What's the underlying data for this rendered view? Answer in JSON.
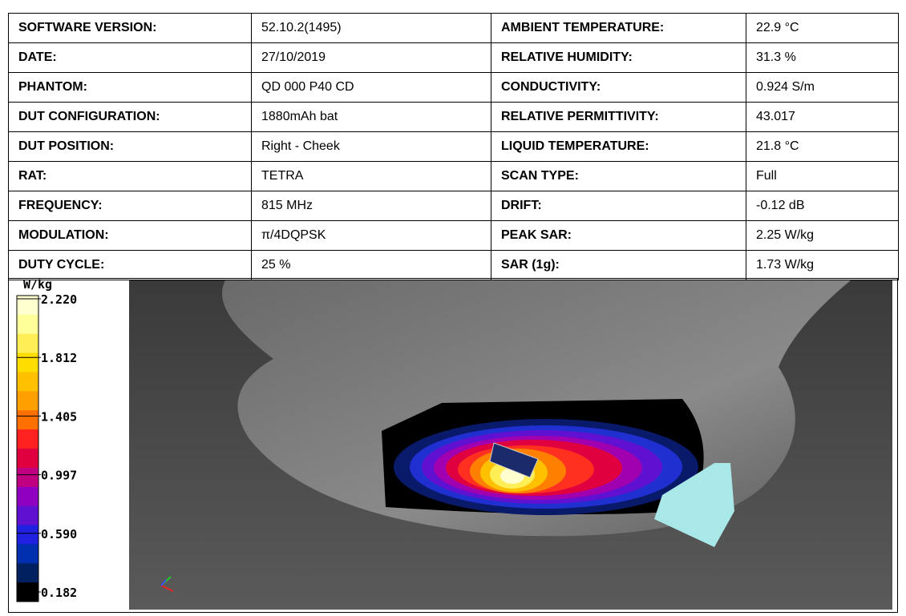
{
  "table": {
    "rows": [
      [
        "SOFTWARE VERSION:",
        "52.10.2(1495)",
        "AMBIENT TEMPERATURE:",
        "22.9 °C"
      ],
      [
        "DATE:",
        "27/10/2019",
        "RELATIVE HUMIDITY:",
        "31.3 %"
      ],
      [
        "PHANTOM:",
        "QD 000 P40 CD",
        "CONDUCTIVITY:",
        "0.924 S/m"
      ],
      [
        "DUT CONFIGURATION:",
        "1880mAh bat",
        "RELATIVE PERMITTIVITY:",
        "43.017"
      ],
      [
        "DUT POSITION:",
        "Right - Cheek",
        "LIQUID TEMPERATURE:",
        "21.8 °C"
      ],
      [
        "RAT:",
        "TETRA",
        "SCAN TYPE:",
        "Full"
      ],
      [
        "FREQUENCY:",
        "815 MHz",
        "DRIFT:",
        "-0.12 dB"
      ],
      [
        "MODULATION:",
        "π/4DQPSK",
        "PEAK SAR:",
        "2.25 W/kg"
      ],
      [
        "DUTY CYCLE:",
        "25 %",
        "SAR (1g):",
        "1.73 W/kg"
      ]
    ]
  },
  "color_scale": {
    "unit": "W/kg",
    "labels": [
      "2.220",
      "1.812",
      "1.405",
      "0.997",
      "0.590",
      "0.182"
    ]
  }
}
